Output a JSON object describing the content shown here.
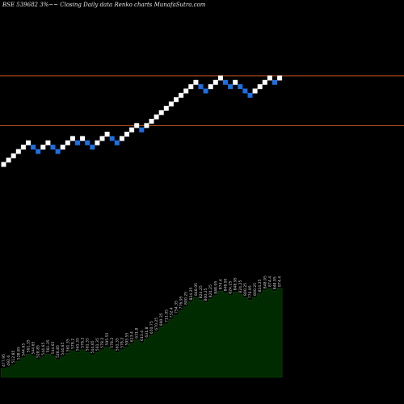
{
  "chart_data": {
    "type": "renko",
    "title": "BSE 539682  3%~~  Closing Daily data  Renko  charts MunafaSutra.com",
    "colors": {
      "up_brick": "#ffffff",
      "down_brick": "#1e6fe0",
      "reference_line": "#c0521f",
      "volume_fill": "#002a00",
      "volume_edge": "#0b3d0b",
      "label": "#d0d0d0"
    },
    "bricks": [
      {
        "dir": "up",
        "level": 0
      },
      {
        "dir": "up",
        "level": 1
      },
      {
        "dir": "up",
        "level": 2
      },
      {
        "dir": "up",
        "level": 3
      },
      {
        "dir": "up",
        "level": 4
      },
      {
        "dir": "up",
        "level": 5
      },
      {
        "dir": "down",
        "level": 4
      },
      {
        "dir": "down",
        "level": 3
      },
      {
        "dir": "up",
        "level": 4
      },
      {
        "dir": "up",
        "level": 5
      },
      {
        "dir": "down",
        "level": 4
      },
      {
        "dir": "down",
        "level": 3
      },
      {
        "dir": "up",
        "level": 4
      },
      {
        "dir": "up",
        "level": 5
      },
      {
        "dir": "up",
        "level": 6
      },
      {
        "dir": "down",
        "level": 5
      },
      {
        "dir": "up",
        "level": 6
      },
      {
        "dir": "down",
        "level": 5
      },
      {
        "dir": "down",
        "level": 4
      },
      {
        "dir": "up",
        "level": 5
      },
      {
        "dir": "up",
        "level": 6
      },
      {
        "dir": "up",
        "level": 7
      },
      {
        "dir": "down",
        "level": 6
      },
      {
        "dir": "down",
        "level": 5
      },
      {
        "dir": "up",
        "level": 6
      },
      {
        "dir": "up",
        "level": 7
      },
      {
        "dir": "up",
        "level": 8
      },
      {
        "dir": "up",
        "level": 9
      },
      {
        "dir": "down",
        "level": 8
      },
      {
        "dir": "up",
        "level": 9
      },
      {
        "dir": "up",
        "level": 10
      },
      {
        "dir": "up",
        "level": 11
      },
      {
        "dir": "up",
        "level": 12
      },
      {
        "dir": "up",
        "level": 13
      },
      {
        "dir": "up",
        "level": 14
      },
      {
        "dir": "up",
        "level": 15
      },
      {
        "dir": "up",
        "level": 16
      },
      {
        "dir": "up",
        "level": 17
      },
      {
        "dir": "up",
        "level": 18
      },
      {
        "dir": "up",
        "level": 19
      },
      {
        "dir": "down",
        "level": 18
      },
      {
        "dir": "down",
        "level": 17
      },
      {
        "dir": "up",
        "level": 18
      },
      {
        "dir": "up",
        "level": 19
      },
      {
        "dir": "up",
        "level": 20
      },
      {
        "dir": "down",
        "level": 19
      },
      {
        "dir": "down",
        "level": 18
      },
      {
        "dir": "up",
        "level": 19
      },
      {
        "dir": "down",
        "level": 18
      },
      {
        "dir": "down",
        "level": 17
      },
      {
        "dir": "down",
        "level": 16
      },
      {
        "dir": "up",
        "level": 17
      },
      {
        "dir": "up",
        "level": 18
      },
      {
        "dir": "up",
        "level": 19
      },
      {
        "dir": "up",
        "level": 20
      },
      {
        "dir": "down",
        "level": 19
      },
      {
        "dir": "up",
        "level": 20
      }
    ],
    "reference_lines": [
      {
        "level": 20.5
      },
      {
        "level": 9
      }
    ],
    "price_labels": [
      "477.95",
      "492.6",
      "512.85",
      "528.85",
      "544.65",
      "561.35",
      "544.65",
      "528.85",
      "544.65",
      "561.35",
      "544.65",
      "528.85",
      "544.65",
      "561.35",
      "578.2",
      "561.35",
      "578.2",
      "561.35",
      "544.65",
      "561.35",
      "578.2",
      "595.55",
      "578.2",
      "561.35",
      "578.2",
      "595.55",
      "613.4",
      "631.8",
      "613.4",
      "631.8",
      "650.75",
      "670.25",
      "690.35",
      "711.05",
      "732.4",
      "754.35",
      "776.95",
      "800.25",
      "824.25",
      "848.95",
      "824.25",
      "800.25",
      "824.25",
      "848.95",
      "874.4",
      "848.95",
      "824.25",
      "848.95",
      "824.25",
      "800.25",
      "776.95",
      "800.25",
      "824.25",
      "848.95",
      "874.4",
      "848.95",
      "874.4"
    ],
    "volume_profile": [
      0.1,
      0.11,
      0.14,
      0.18,
      0.22,
      0.26,
      0.24,
      0.2,
      0.23,
      0.26,
      0.24,
      0.2,
      0.23,
      0.27,
      0.3,
      0.28,
      0.31,
      0.28,
      0.25,
      0.28,
      0.31,
      0.34,
      0.31,
      0.28,
      0.31,
      0.34,
      0.38,
      0.42,
      0.39,
      0.43,
      0.47,
      0.51,
      0.56,
      0.6,
      0.65,
      0.7,
      0.75,
      0.8,
      0.85,
      0.9,
      0.87,
      0.84,
      0.88,
      0.92,
      0.97,
      0.95,
      0.92,
      0.96,
      0.93,
      0.9,
      0.87,
      0.9,
      0.94,
      0.98,
      1.0,
      0.97,
      1.0
    ]
  }
}
